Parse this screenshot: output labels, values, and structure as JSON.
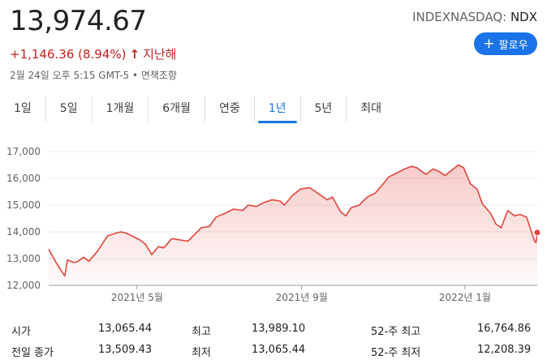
{
  "quote": {
    "price": "13,974.67",
    "change": "+1,146.36 (8.94%)",
    "direction_icon": "arrow-up-icon",
    "period": "지난해",
    "timestamp": "2월 24일 오후 5:15 GMT-5 • 면책조항",
    "exchange": "INDEXNASDAQ: ",
    "symbol": "NDX",
    "up_color": "#c5221f"
  },
  "follow_button": {
    "label": "팔로우",
    "icon": "plus-icon",
    "color": "#1a73e8"
  },
  "tabs": [
    {
      "label": "1일",
      "active": false
    },
    {
      "label": "5일",
      "active": false
    },
    {
      "label": "1개월",
      "active": false
    },
    {
      "label": "6개월",
      "active": false
    },
    {
      "label": "연중",
      "active": false
    },
    {
      "label": "1년",
      "active": true
    },
    {
      "label": "5년",
      "active": false
    },
    {
      "label": "최대",
      "active": false
    }
  ],
  "stats": {
    "rows": [
      [
        {
          "label": "시가",
          "value": "13,065.44"
        },
        {
          "label": "최고",
          "value": "13,989.10"
        },
        {
          "label": "52-주 최고",
          "value": "16,764.86"
        }
      ],
      [
        {
          "label": "전일 종가",
          "value": "13,509.43"
        },
        {
          "label": "최저",
          "value": "13,065.44"
        },
        {
          "label": "52-주 최저",
          "value": "12,208.39"
        }
      ]
    ]
  },
  "chart_data": {
    "type": "area",
    "title": "",
    "xlabel": "",
    "ylabel": "",
    "ylim": [
      12000,
      17000
    ],
    "y_ticks": [
      "12,000",
      "13,000",
      "14,000",
      "15,000",
      "16,000",
      "17,000"
    ],
    "y_tick_values": [
      12000,
      13000,
      14000,
      15000,
      16000,
      17000
    ],
    "x_ticks": [
      "2021년 5월",
      "2021년 9월",
      "2022년 1월"
    ],
    "x_tick_dates": [
      "2021-05-01",
      "2021-09-01",
      "2022-01-01"
    ],
    "x_range": [
      "2021-02-24",
      "2022-02-24"
    ],
    "grid": "horizontal",
    "line_color": "#e2453c",
    "series": [
      {
        "dates": [
          "2021-02-24",
          "2021-03-01",
          "2021-03-04",
          "2021-03-08",
          "2021-03-10",
          "2021-03-15",
          "2021-03-18",
          "2021-03-22",
          "2021-03-26",
          "2021-04-01",
          "2021-04-05",
          "2021-04-09",
          "2021-04-15",
          "2021-04-19",
          "2021-04-23",
          "2021-04-29",
          "2021-05-03",
          "2021-05-07",
          "2021-05-12",
          "2021-05-17",
          "2021-05-21",
          "2021-05-27",
          "2021-06-02",
          "2021-06-08",
          "2021-06-14",
          "2021-06-18",
          "2021-06-24",
          "2021-06-29",
          "2021-07-06",
          "2021-07-12",
          "2021-07-19",
          "2021-07-23",
          "2021-07-29",
          "2021-08-04",
          "2021-08-10",
          "2021-08-16",
          "2021-08-19",
          "2021-08-25",
          "2021-08-31",
          "2021-09-07",
          "2021-09-13",
          "2021-09-20",
          "2021-09-24",
          "2021-09-30",
          "2021-10-04",
          "2021-10-08",
          "2021-10-14",
          "2021-10-20",
          "2021-10-26",
          "2021-11-01",
          "2021-11-05",
          "2021-11-11",
          "2021-11-17",
          "2021-11-22",
          "2021-11-26",
          "2021-11-30",
          "2021-12-03",
          "2021-12-08",
          "2021-12-13",
          "2021-12-17",
          "2021-12-22",
          "2021-12-27",
          "2021-12-31",
          "2022-01-05",
          "2022-01-10",
          "2022-01-14",
          "2022-01-20",
          "2022-01-24",
          "2022-01-28",
          "2022-02-02",
          "2022-02-07",
          "2022-02-11",
          "2022-02-16",
          "2022-02-22",
          "2022-02-23",
          "2022-02-24"
        ],
        "values": [
          13350,
          12900,
          12650,
          12350,
          12950,
          12850,
          12900,
          13050,
          12900,
          13250,
          13550,
          13850,
          13950,
          14000,
          13950,
          13800,
          13700,
          13550,
          13150,
          13450,
          13400,
          13750,
          13700,
          13650,
          13950,
          14150,
          14200,
          14550,
          14700,
          14850,
          14800,
          15000,
          14950,
          15100,
          15200,
          15150,
          15000,
          15350,
          15600,
          15650,
          15450,
          15200,
          15300,
          14750,
          14600,
          14900,
          15000,
          15300,
          15450,
          15800,
          16050,
          16200,
          16350,
          16450,
          16400,
          16250,
          16150,
          16350,
          16250,
          16100,
          16300,
          16500,
          16400,
          15800,
          15600,
          15050,
          14700,
          14300,
          14150,
          14800,
          14600,
          14650,
          14550,
          13650,
          13600,
          13974.67
        ]
      }
    ],
    "last_point": {
      "date": "2022-02-24",
      "value": 13974.67
    }
  }
}
